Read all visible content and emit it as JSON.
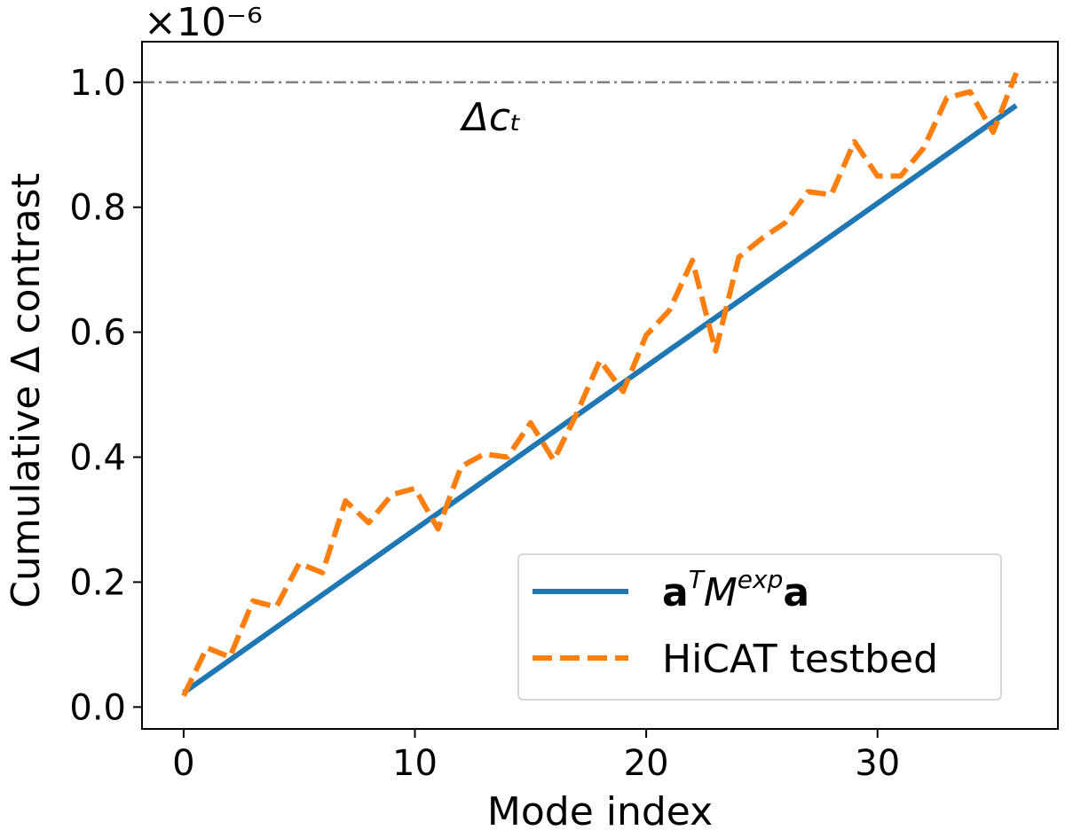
{
  "chart_data": {
    "type": "line",
    "title": "",
    "xlabel": "Mode index",
    "ylabel": "Cumulative Δ contrast",
    "y_multiplier": "×10⁻⁶",
    "xlim": [
      -1.8,
      37.8
    ],
    "ylim": [
      -0.035,
      1.065
    ],
    "xticks": [
      0,
      10,
      20,
      30
    ],
    "xtick_labels": [
      "0",
      "10",
      "20",
      "30"
    ],
    "yticks": [
      0.0,
      0.2,
      0.4,
      0.6,
      0.8,
      1.0
    ],
    "ytick_labels": [
      "0.0",
      "0.2",
      "0.4",
      "0.6",
      "0.8",
      "1.0"
    ],
    "grid": false,
    "legend_position": "lower-right",
    "threshold": {
      "value": 1.0,
      "label": "Δcₜ",
      "label_x": 13.5,
      "color": "#808080"
    },
    "series": [
      {
        "name": "aᵀMᵉˣᵖa",
        "color": "#1f77b4",
        "style": "solid",
        "x": [
          0,
          36
        ],
        "values": [
          0.023,
          0.963
        ]
      },
      {
        "name": "HiCAT testbed",
        "color": "#ff7f0e",
        "style": "dashed",
        "x": [
          0,
          1,
          2,
          3,
          4,
          5,
          6,
          7,
          8,
          9,
          10,
          11,
          12,
          13,
          14,
          15,
          16,
          17,
          18,
          19,
          20,
          21,
          22,
          23,
          24,
          25,
          26,
          27,
          28,
          29,
          30,
          31,
          32,
          33,
          34,
          35,
          36
        ],
        "values": [
          0.018,
          0.095,
          0.08,
          0.17,
          0.16,
          0.23,
          0.215,
          0.33,
          0.295,
          0.34,
          0.35,
          0.285,
          0.385,
          0.405,
          0.4,
          0.455,
          0.395,
          0.47,
          0.555,
          0.505,
          0.595,
          0.635,
          0.715,
          0.57,
          0.72,
          0.75,
          0.775,
          0.825,
          0.82,
          0.905,
          0.85,
          0.85,
          0.895,
          0.975,
          0.985,
          0.92,
          1.015
        ]
      }
    ],
    "legend": [
      {
        "label_main": "a",
        "label_sup1": "T",
        "label_mid": "M",
        "label_sup2": "exp",
        "label_end": "a"
      },
      {
        "label": "HiCAT testbed"
      }
    ]
  }
}
